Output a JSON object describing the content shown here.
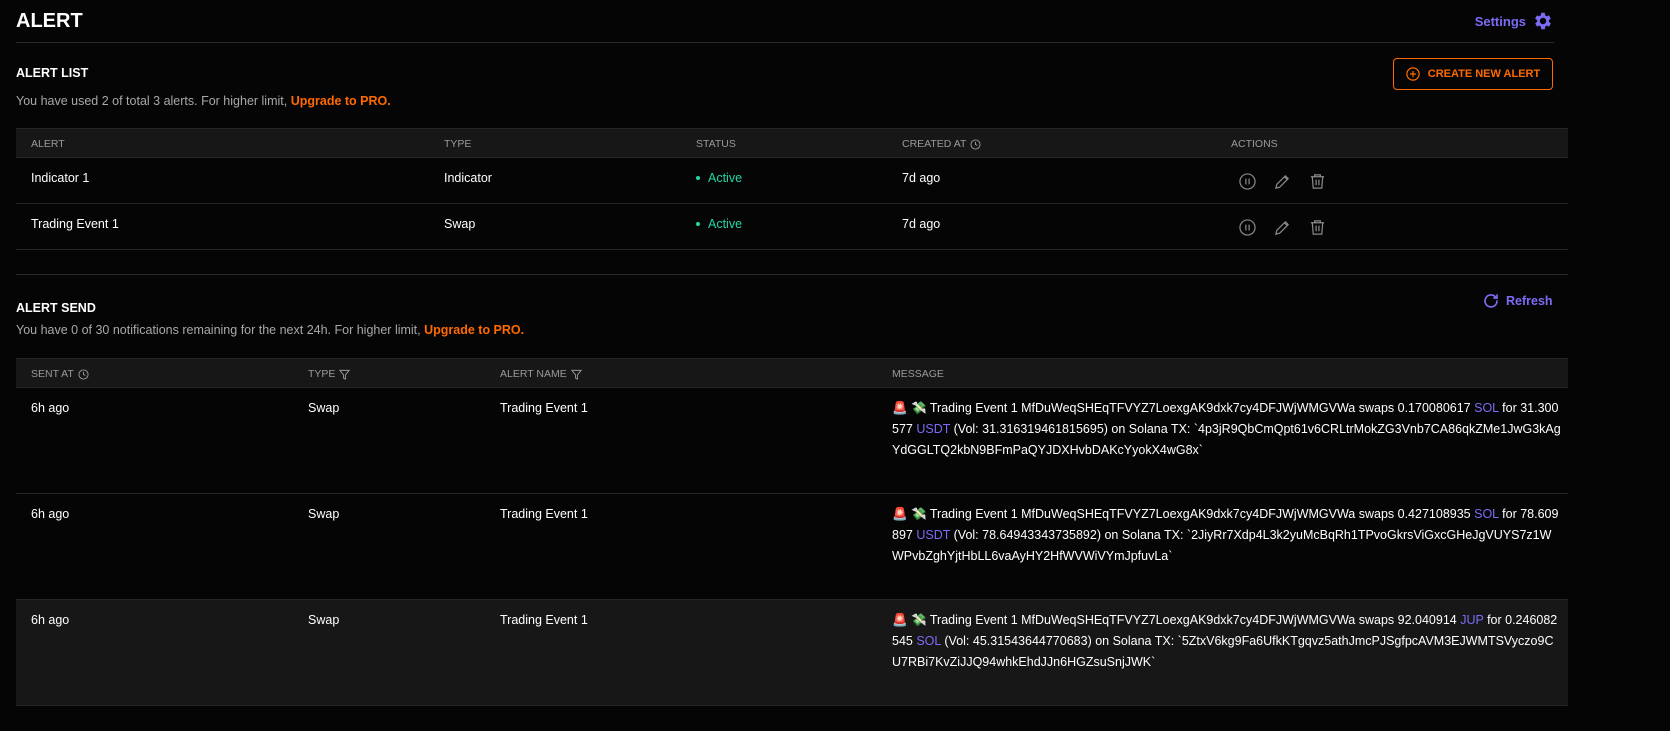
{
  "header": {
    "title": "ALERT",
    "settings_label": "Settings",
    "settings_icon": "gear-icon"
  },
  "colors": {
    "accent": "#7b6cf6",
    "orange": "#ff6a00",
    "active": "#23d6a8"
  },
  "alert_list": {
    "title": "ALERT LIST",
    "usage_text": "You have used 2 of total 3 alerts. For higher limit, ",
    "upgrade_label": "Upgrade to PRO.",
    "create_label": "CREATE NEW ALERT",
    "columns": [
      "ALERT",
      "TYPE",
      "STATUS",
      "CREATED AT",
      "ACTIONS"
    ],
    "rows": [
      {
        "alert": "Indicator 1",
        "type": "Indicator",
        "status": "Active",
        "created": "7d ago"
      },
      {
        "alert": "Trading Event 1",
        "type": "Swap",
        "status": "Active",
        "created": "7d ago"
      }
    ]
  },
  "alert_send": {
    "title": "ALERT SEND",
    "usage_text": "You have 0 of 30 notifications remaining for the next 24h. For higher limit, ",
    "upgrade_label": "Upgrade to PRO.",
    "refresh_label": "Refresh",
    "columns": [
      "SENT AT",
      "TYPE",
      "ALERT NAME",
      "MESSAGE"
    ],
    "rows": [
      {
        "sent": "6h ago",
        "type": "Swap",
        "name": "Trading Event 1",
        "m1": "Trading Event 1 MfDuWeqSHEqTFVYZ7LoexgAK9dxk7cy4DFJWjWMGVWa swaps 0.170080617 ",
        "t1": "SOL",
        "m2": " for 31.300577 ",
        "t2": "USDT",
        "m3": " (Vol: 31.316319461815695) on Solana TX: `4p3jR9QbCmQpt61v6CRLtrMokZG3Vnb7CA86qkZMe1JwG3kAgYdGGLTQ2kbN9BFmPaQYJDXHvbDAKcYyokX4wG8x`"
      },
      {
        "sent": "6h ago",
        "type": "Swap",
        "name": "Trading Event 1",
        "m1": "Trading Event 1 MfDuWeqSHEqTFVYZ7LoexgAK9dxk7cy4DFJWjWMGVWa swaps 0.427108935 ",
        "t1": "SOL",
        "m2": " for 78.609897 ",
        "t2": "USDT",
        "m3": " (Vol: 78.64943343735892) on Solana TX: `2JiyRr7Xdp4L3k2yuMcBqRh1TPvoGkrsViGxcGHeJgVUYS7z1WWPvbZghYjtHbLL6vaAyHY2HfWVWiVYmJpfuvLa`"
      },
      {
        "sent": "6h ago",
        "type": "Swap",
        "name": "Trading Event 1",
        "m1": "Trading Event 1 MfDuWeqSHEqTFVYZ7LoexgAK9dxk7cy4DFJWjWMGVWa swaps 92.040914 ",
        "t1": "JUP",
        "m2": " for 0.246082545 ",
        "t2": "SOL",
        "m3": " (Vol: 45.31543644770683) on Solana TX: `5ZtxV6kg9Fa6UfkKTgqvz5athJmcPJSgfpcAVM3EJWMTSVyczo9CU7RBi7KvZiJJQ94whkEhdJJn6HGZsuSnjJWK`"
      }
    ]
  }
}
